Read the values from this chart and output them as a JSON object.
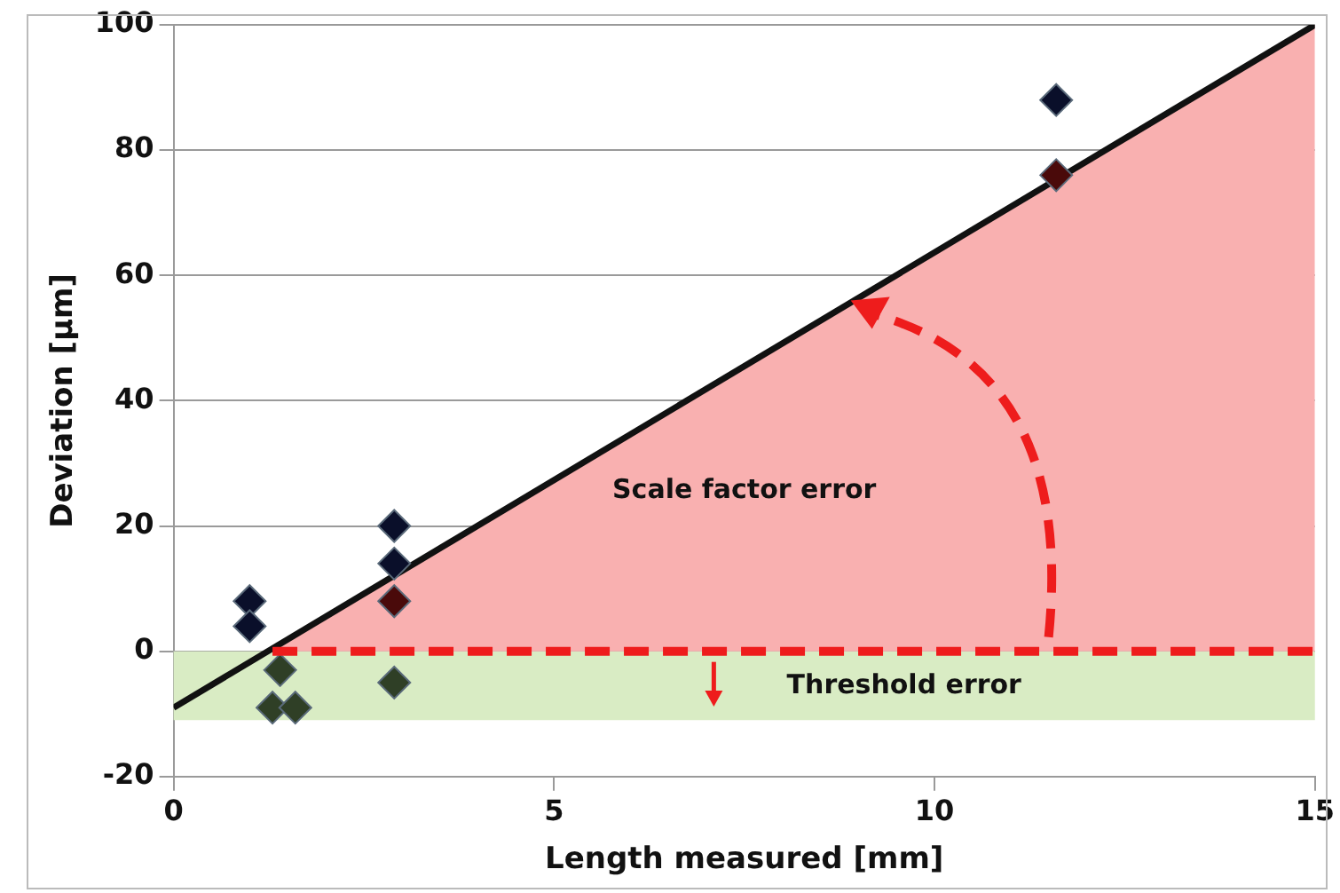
{
  "chart_data": {
    "type": "scatter",
    "xlabel": "Length measured [mm]",
    "ylabel": "Deviation [µm]",
    "xlim": [
      0,
      15
    ],
    "xticks": [
      0,
      5,
      10,
      15
    ],
    "ylim": [
      -20,
      100
    ],
    "yticks": [
      -20,
      0,
      20,
      40,
      60,
      80,
      100
    ],
    "grid": "y",
    "legend": false,
    "series": [
      {
        "type": "area",
        "color": "#f9b0b0",
        "x": [
          1.2,
          15
        ],
        "values": [
          0,
          100
        ]
      },
      {
        "type": "line",
        "color": "#111111",
        "x": [
          0,
          15
        ],
        "values": [
          -9,
          100
        ]
      },
      {
        "type": "scatter",
        "marker": "diamond",
        "x": [
          1.0,
          1.0,
          1.4,
          1.3,
          1.6,
          2.9,
          2.9,
          2.9,
          2.9,
          11.6,
          11.6
        ],
        "values": [
          8,
          4,
          -3,
          -9,
          -9,
          20,
          14,
          8,
          -5,
          88,
          76
        ],
        "colors": [
          "#0a0f2a",
          "#0a0f2a",
          "#2f3f26",
          "#2f3f26",
          "#2f3f26",
          "#0a0f2a",
          "#0a0f2a",
          "#4a0a0a",
          "#2f3f26",
          "#0a0f2a",
          "#4a0a0a"
        ]
      }
    ],
    "bands": [
      {
        "axis": "y",
        "from": -11,
        "to": 0,
        "color": "#d9ecc4"
      }
    ],
    "ref_lines": [
      {
        "axis": "y",
        "value": 0,
        "color": "#ee1c1c",
        "line_style": "dashed"
      }
    ],
    "annotations": [
      "Scale factor error",
      "Threshold error"
    ]
  }
}
